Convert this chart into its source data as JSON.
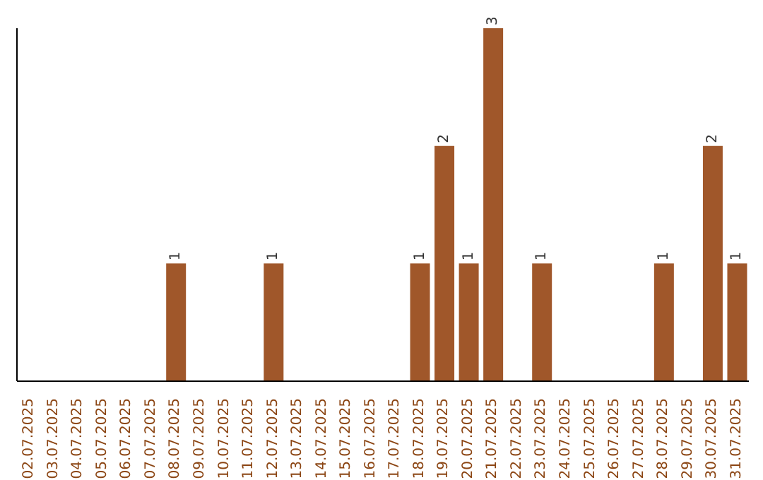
{
  "chart_data": {
    "type": "bar",
    "categories": [
      "02.07.2025",
      "03.07.2025",
      "04.07.2025",
      "05.07.2025",
      "06.07.2025",
      "07.07.2025",
      "08.07.2025",
      "09.07.2025",
      "10.07.2025",
      "11.07.2025",
      "12.07.2025",
      "13.07.2025",
      "14.07.2025",
      "15.07.2025",
      "16.07.2025",
      "17.07.2025",
      "18.07.2025",
      "19.07.2025",
      "20.07.2025",
      "21.07.2025",
      "22.07.2025",
      "23.07.2025",
      "24.07.2025",
      "25.07.2025",
      "26.07.2025",
      "27.07.2025",
      "28.07.2025",
      "29.07.2025",
      "30.07.2025",
      "31.07.2025"
    ],
    "values": [
      0,
      0,
      0,
      0,
      0,
      0,
      1,
      0,
      0,
      0,
      1,
      0,
      0,
      0,
      0,
      0,
      1,
      2,
      1,
      3,
      0,
      1,
      0,
      0,
      0,
      0,
      1,
      0,
      2,
      1
    ],
    "value_labels": [
      null,
      null,
      null,
      null,
      null,
      null,
      "1",
      null,
      null,
      null,
      "1",
      null,
      null,
      null,
      null,
      null,
      "1",
      "2",
      "1",
      "3",
      null,
      "1",
      null,
      null,
      null,
      null,
      "1",
      null,
      "2",
      "1"
    ],
    "color": "#a0572a",
    "grid": false,
    "legend": false
  }
}
